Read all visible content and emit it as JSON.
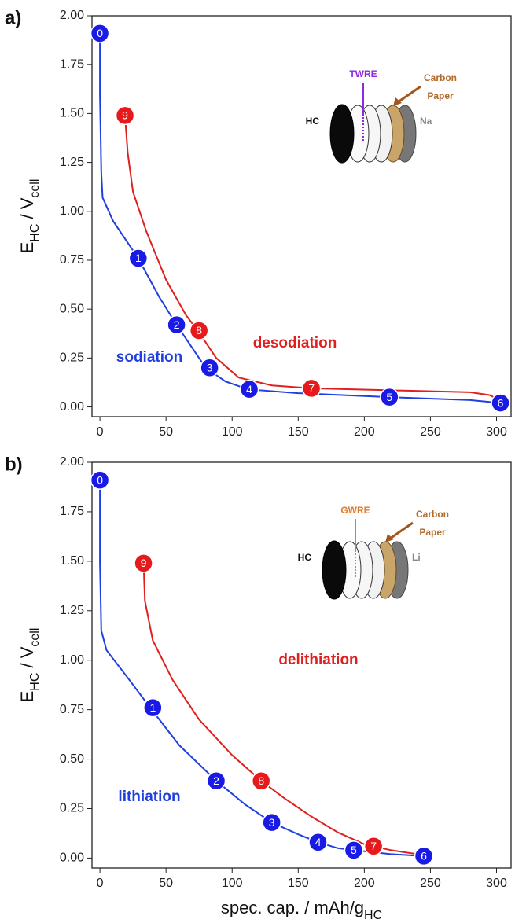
{
  "chart_data": [
    {
      "type": "line",
      "panel_label": "a)",
      "ylabel": [
        "E",
        "HC",
        " / V",
        "cell"
      ],
      "xlim": [
        -6,
        311
      ],
      "ylim": [
        -0.05,
        2.0
      ],
      "xticks": [
        0,
        50,
        100,
        150,
        200,
        250,
        300
      ],
      "yticks": [
        {
          "value": 0,
          "label": "0.00"
        },
        {
          "value": 0.25,
          "label": "0.25"
        },
        {
          "value": 0.5,
          "label": "0.50"
        },
        {
          "value": 0.75,
          "label": "0.75"
        },
        {
          "value": 1,
          "label": "1.00"
        },
        {
          "value": 1.25,
          "label": "1.25"
        },
        {
          "value": 1.5,
          "label": "1.50"
        },
        {
          "value": 1.75,
          "label": "1.75"
        },
        {
          "value": 2,
          "label": "2.00"
        }
      ],
      "series": [
        {
          "name": "sodiation",
          "color": "#1f3fe0",
          "x": [
            0,
            0,
            1,
            2,
            10,
            29,
            45,
            58,
            70,
            80,
            95,
            112,
            150,
            219,
            280,
            303
          ],
          "y": [
            1.9,
            1.6,
            1.2,
            1.07,
            0.95,
            0.76,
            0.56,
            0.42,
            0.3,
            0.2,
            0.13,
            0.09,
            0.07,
            0.05,
            0.035,
            0.02
          ]
        },
        {
          "name": "desodiation",
          "color": "#e01f1f",
          "x": [
            19,
            21,
            25,
            35,
            50,
            65,
            75,
            88,
            105,
            130,
            160,
            220,
            280,
            295,
            303
          ],
          "y": [
            1.49,
            1.3,
            1.1,
            0.9,
            0.65,
            0.47,
            0.38,
            0.25,
            0.15,
            0.11,
            0.095,
            0.085,
            0.075,
            0.06,
            0.03
          ]
        }
      ],
      "markers": [
        {
          "label": "0",
          "x": 0,
          "y": 1.91,
          "color": "#1a1ae6"
        },
        {
          "label": "1",
          "x": 29,
          "y": 0.76,
          "color": "#1a1ae6"
        },
        {
          "label": "2",
          "x": 58,
          "y": 0.42,
          "color": "#1a1ae6"
        },
        {
          "label": "3",
          "x": 83,
          "y": 0.2,
          "color": "#1a1ae6"
        },
        {
          "label": "4",
          "x": 113,
          "y": 0.09,
          "color": "#1a1ae6"
        },
        {
          "label": "5",
          "x": 219,
          "y": 0.05,
          "color": "#1a1ae6"
        },
        {
          "label": "6",
          "x": 303,
          "y": 0.02,
          "color": "#1a1ae6"
        },
        {
          "label": "7",
          "x": 160,
          "y": 0.095,
          "color": "#e61a1a"
        },
        {
          "label": "8",
          "x": 75,
          "y": 0.39,
          "color": "#e61a1a"
        },
        {
          "label": "9",
          "x": 19,
          "y": 1.49,
          "color": "#e61a1a"
        }
      ],
      "inset": {
        "electrode": "HC",
        "reference": "TWRE",
        "reference_color": "#8a2be2",
        "paper": [
          "Carbon",
          "Paper"
        ],
        "counter": "Na"
      }
    },
    {
      "type": "line",
      "panel_label": "b)",
      "ylabel": [
        "E",
        "HC",
        " / V",
        "cell"
      ],
      "xlabel": [
        "spec. cap. / mAh/g",
        "HC"
      ],
      "xlim": [
        -6,
        311
      ],
      "ylim": [
        -0.05,
        2.0
      ],
      "xticks": [
        0,
        50,
        100,
        150,
        200,
        250,
        300
      ],
      "yticks": [
        {
          "value": 0,
          "label": "0.00"
        },
        {
          "value": 0.25,
          "label": "0.25"
        },
        {
          "value": 0.5,
          "label": "0.50"
        },
        {
          "value": 0.75,
          "label": "0.75"
        },
        {
          "value": 1,
          "label": "1.00"
        },
        {
          "value": 1.25,
          "label": "1.25"
        },
        {
          "value": 1.5,
          "label": "1.50"
        },
        {
          "value": 1.75,
          "label": "1.75"
        },
        {
          "value": 2,
          "label": "2.00"
        }
      ],
      "series": [
        {
          "name": "lithiation",
          "color": "#1f3fe0",
          "x": [
            0,
            0,
            1,
            5,
            20,
            38,
            60,
            88,
            110,
            130,
            150,
            165,
            180,
            192,
            220,
            245
          ],
          "y": [
            1.9,
            1.5,
            1.15,
            1.05,
            0.92,
            0.76,
            0.57,
            0.39,
            0.27,
            0.18,
            0.12,
            0.08,
            0.05,
            0.04,
            0.02,
            0.01
          ]
        },
        {
          "name": "delithiation",
          "color": "#e01f1f",
          "x": [
            33,
            34,
            40,
            55,
            75,
            100,
            122,
            140,
            160,
            180,
            200,
            220,
            245
          ],
          "y": [
            1.49,
            1.3,
            1.1,
            0.9,
            0.7,
            0.52,
            0.39,
            0.3,
            0.21,
            0.13,
            0.07,
            0.04,
            0.015
          ]
        }
      ],
      "markers": [
        {
          "label": "0",
          "x": 0,
          "y": 1.91,
          "color": "#1a1ae6"
        },
        {
          "label": "1",
          "x": 40,
          "y": 0.76,
          "color": "#1a1ae6"
        },
        {
          "label": "2",
          "x": 88,
          "y": 0.39,
          "color": "#1a1ae6"
        },
        {
          "label": "3",
          "x": 130,
          "y": 0.18,
          "color": "#1a1ae6"
        },
        {
          "label": "4",
          "x": 165,
          "y": 0.08,
          "color": "#1a1ae6"
        },
        {
          "label": "5",
          "x": 192,
          "y": 0.04,
          "color": "#1a1ae6"
        },
        {
          "label": "6",
          "x": 245,
          "y": 0.01,
          "color": "#1a1ae6"
        },
        {
          "label": "7",
          "x": 207,
          "y": 0.06,
          "color": "#e61a1a"
        },
        {
          "label": "8",
          "x": 122,
          "y": 0.39,
          "color": "#e61a1a"
        },
        {
          "label": "9",
          "x": 33,
          "y": 1.49,
          "color": "#e61a1a"
        }
      ],
      "inset": {
        "electrode": "HC",
        "reference": "GWRE",
        "reference_color": "#e07b2a",
        "paper": [
          "Carbon",
          "Paper"
        ],
        "counter": "Li"
      }
    }
  ]
}
